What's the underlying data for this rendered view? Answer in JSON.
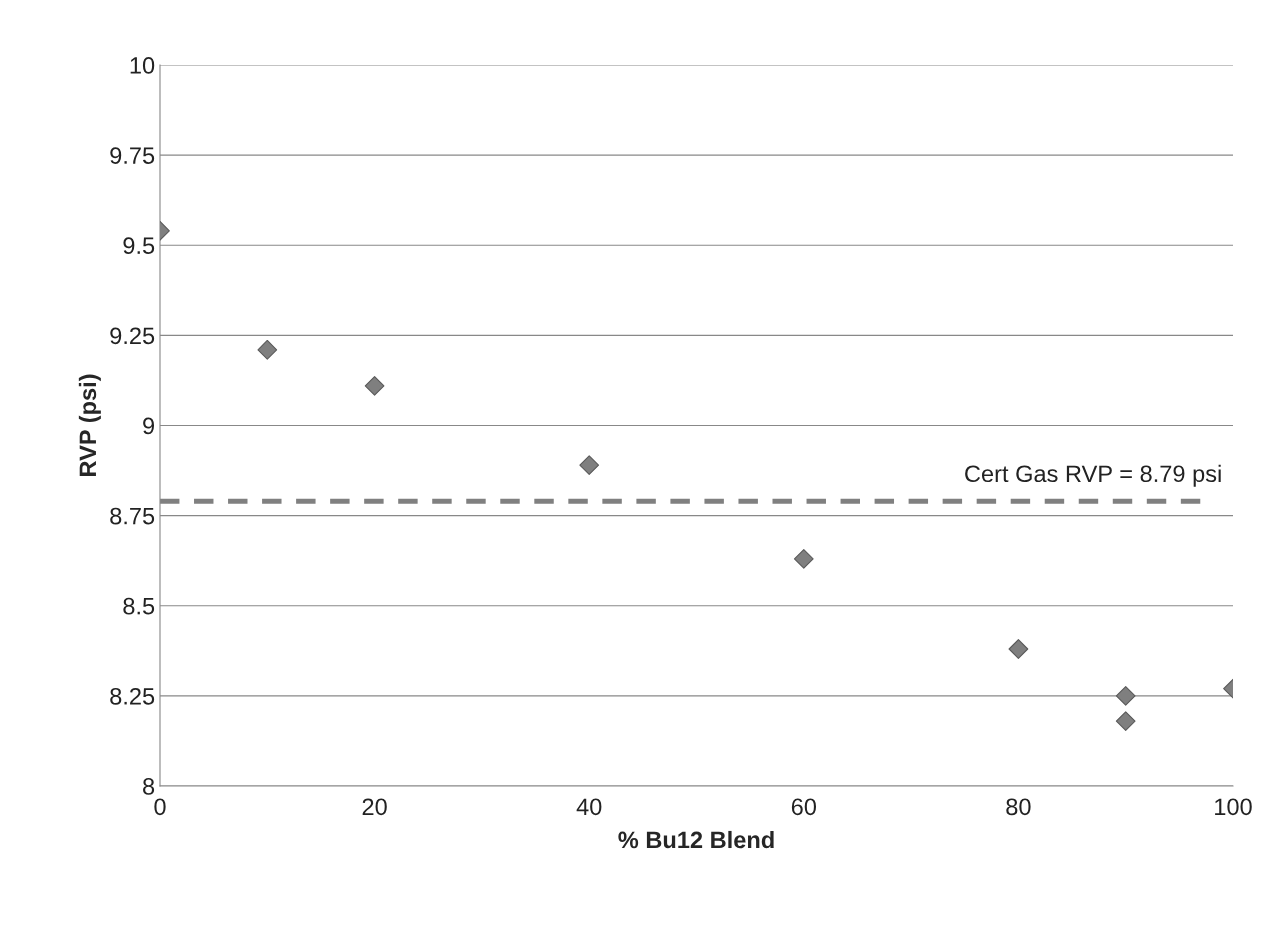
{
  "chart_data": {
    "type": "scatter",
    "xlabel": "% Bu12 Blend",
    "ylabel": "RVP (psi)",
    "x": [
      0,
      10,
      20,
      40,
      60,
      80,
      90,
      90,
      100
    ],
    "series": [
      {
        "color": "#7f7f7f",
        "values": [
          9.54,
          9.21,
          9.11,
          8.89,
          8.63,
          8.38,
          8.25,
          8.18,
          8.27
        ]
      }
    ],
    "xlim": [
      0,
      100
    ],
    "xticks": [
      0,
      20,
      40,
      60,
      80,
      100
    ],
    "ylim": [
      8,
      10
    ],
    "yticks": [
      8,
      8.25,
      8.5,
      8.75,
      9,
      9.25,
      9.5,
      9.75,
      10
    ],
    "ref_lines": [
      {
        "axis": "y",
        "value": 8.79,
        "label": "Cert Gas RVP = 8.79 psi",
        "color": "#808080",
        "line_style": "dashed"
      }
    ],
    "grid": "y",
    "marker": "diamond",
    "legend": false
  }
}
